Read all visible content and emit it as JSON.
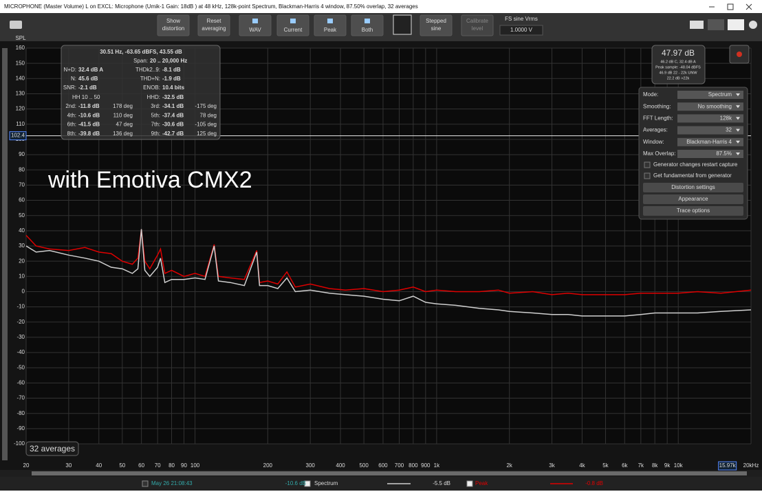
{
  "window": {
    "title": "MICROPHONE (Master Volume) L on EXCL: Microphone (Umik-1  Gain: 18dB  ) at 48 kHz, 128k-point Spectrum, Blackman-Harris 4 window, 87.50% overlap, 32 averages"
  },
  "toolbar": {
    "buttons": [
      {
        "lines": [
          "Show",
          "distortion"
        ]
      },
      {
        "lines": [
          "Reset",
          "averaging"
        ]
      },
      {
        "lines": [
          "WAV"
        ]
      },
      {
        "lines": [
          "Current"
        ]
      },
      {
        "lines": [
          "Peak"
        ]
      },
      {
        "lines": [
          "Both"
        ]
      },
      {
        "lines": [
          "Stepped",
          "sine"
        ]
      },
      {
        "lines": [
          "Calibrate",
          "level"
        ]
      }
    ],
    "fs_label": "FS sine Vrms",
    "fs_value": "1.0000 V"
  },
  "chart_data": {
    "type": "line",
    "y_label": "SPL",
    "annotation": "with Emotiva CMX2",
    "badge": "32 averages",
    "xlog": true,
    "grid": true,
    "xlim": [
      20,
      20000
    ],
    "ylim": [
      -100,
      160
    ],
    "xticks": [
      20,
      30,
      40,
      50,
      60,
      70,
      80,
      90,
      100,
      200,
      300,
      400,
      500,
      600,
      700,
      800,
      900,
      {
        "value": 1000,
        "label": "1k"
      },
      {
        "value": 2000,
        "label": "2k"
      },
      {
        "value": 3000,
        "label": "3k"
      },
      {
        "value": 4000,
        "label": "4k"
      },
      {
        "value": 5000,
        "label": "5k"
      },
      {
        "value": 6000,
        "label": "6k"
      },
      {
        "value": 7000,
        "label": "7k"
      },
      {
        "value": 8000,
        "label": "8k"
      },
      {
        "value": 9000,
        "label": "9k"
      },
      {
        "value": 10000,
        "label": "10k"
      },
      {
        "value": 20000,
        "label": "20kHz"
      }
    ],
    "yticks": [
      160,
      150,
      140,
      130,
      120,
      110,
      100,
      90,
      80,
      70,
      60,
      50,
      40,
      30,
      20,
      10,
      0,
      -10,
      -20,
      -30,
      -40,
      -50,
      -60,
      -70,
      -80,
      -90,
      -100
    ],
    "y_cursor": 102.4,
    "x_cursor": {
      "value": 15970,
      "label": "15.97k"
    },
    "x": [
      20,
      22,
      25,
      30,
      35,
      40,
      45,
      50,
      55,
      58,
      60,
      62,
      65,
      70,
      72,
      75,
      80,
      90,
      100,
      110,
      120,
      125,
      140,
      160,
      180,
      185,
      200,
      220,
      240,
      260,
      300,
      360,
      420,
      500,
      600,
      700,
      800,
      900,
      1000,
      1200,
      1500,
      1800,
      2000,
      2500,
      3000,
      3500,
      4000,
      5000,
      6000,
      7000,
      8000,
      10000,
      12000,
      15000,
      20000
    ],
    "series": [
      {
        "name": "Peak",
        "color": "#e00000",
        "values": [
          37,
          30,
          28,
          27,
          29,
          26,
          25,
          20,
          18,
          22,
          41,
          20,
          15,
          24,
          28,
          12,
          14,
          10,
          12,
          10,
          31,
          10,
          9,
          8,
          27,
          6,
          7,
          5,
          13,
          3,
          5,
          2,
          1,
          2,
          0,
          1,
          3,
          0,
          1,
          0,
          0,
          1,
          -1,
          0,
          -2,
          -1,
          -2,
          -2,
          -2,
          -1,
          -1,
          -1,
          0,
          -1,
          1
        ]
      },
      {
        "name": "Spectrum",
        "color": "#d0d0d0",
        "values": [
          30,
          26,
          27,
          24,
          22,
          20,
          16,
          15,
          12,
          15,
          41,
          14,
          10,
          16,
          22,
          6,
          8,
          8,
          9,
          8,
          30,
          7,
          6,
          4,
          26,
          4,
          4,
          2,
          9,
          0,
          1,
          -1,
          -2,
          -3,
          -5,
          -6,
          -3,
          -7,
          -8,
          -9,
          -11,
          -12,
          -13,
          -14,
          -15,
          -15,
          -16,
          -16,
          -16,
          -15,
          -14,
          -14,
          -14,
          -13,
          -12
        ]
      }
    ]
  },
  "info": {
    "header": "30.51 Hz, -63.65 dBFS, 43.55 dB",
    "span_label": "Span:",
    "span": "20 .. 20,000 Hz",
    "left": [
      {
        "label": "N+D:",
        "value": "32.4 dB A"
      },
      {
        "label": "N:",
        "value": "45.6 dB"
      },
      {
        "label": "SNR:",
        "value": "-2.1 dB"
      }
    ],
    "hh": "HH 10 .. 50",
    "right": [
      {
        "label": "THDk2..9:",
        "value": "-8.1 dB"
      },
      {
        "label": "THD+N:",
        "value": "-1.9 dB"
      },
      {
        "label": "ENOB:",
        "value": "10.4 bits"
      },
      {
        "label": "HHD:",
        "value": "-32.5 dB"
      }
    ],
    "harmonics": [
      {
        "label": "2nd:",
        "level": "-11.8 dB",
        "phase": "178 deg"
      },
      {
        "label": "3rd:",
        "level": "-34.1 dB",
        "phase": "-175 deg"
      },
      {
        "label": "4th:",
        "level": "-10.6 dB",
        "phase": "110 deg"
      },
      {
        "label": "5th:",
        "level": "-37.4 dB",
        "phase": "78 deg"
      },
      {
        "label": "6th:",
        "level": "-41.5 dB",
        "phase": "47 deg"
      },
      {
        "label": "7th:",
        "level": "-30.6 dB",
        "phase": "-105 deg"
      },
      {
        "label": "8th:",
        "level": "-39.8 dB",
        "phase": "136 deg"
      },
      {
        "label": "9th:",
        "level": "-42.7 dB",
        "phase": "125 deg"
      }
    ]
  },
  "level": {
    "main": "47.97 dB",
    "lines": [
      "46.2 dB C, 32.4 dB A",
      "Peak sample: -48.04 dBFS",
      "46.9 dB 22 - 22k UNW",
      "22.2 dB >22k"
    ]
  },
  "settings": {
    "rows": [
      {
        "label": "Mode:",
        "value": "Spectrum"
      },
      {
        "label": "Smoothing:",
        "value": "No smoothing"
      },
      {
        "label": "FFT Length:",
        "value": "128k"
      },
      {
        "label": "Averages:",
        "value": "32"
      },
      {
        "label": "Window:",
        "value": "Blackman-Harris 4"
      },
      {
        "label": "Max Overlap:",
        "value": "87.5%"
      }
    ],
    "checks": [
      "Generator changes restart capture",
      "Get fundamental from generator"
    ],
    "buttons": [
      "Distortion settings",
      "Appearance",
      "Trace options"
    ]
  },
  "status": {
    "time": "May 26 21:08:43",
    "level1": "-10.6 dB",
    "trace1": "Spectrum",
    "level2": "-5.5 dB",
    "trace2": "Peak",
    "level3": "-0.8 dB"
  }
}
